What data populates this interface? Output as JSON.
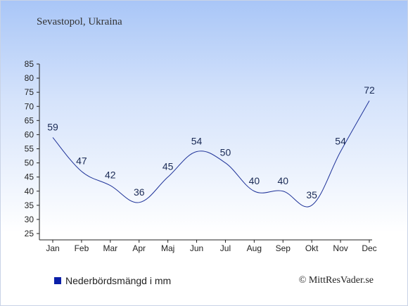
{
  "subtitle": "Sevastopol, Ukraina",
  "legend_label": "Nederbördsmängd i mm",
  "credit": "© MittResVader.se",
  "colors": {
    "line": "#1f3399",
    "legend_swatch": "#0b1fa8",
    "axis": "#222222"
  },
  "chart_data": {
    "type": "line",
    "title": "",
    "xlabel": "",
    "ylabel": "",
    "categories": [
      "Jan",
      "Feb",
      "Mar",
      "Apr",
      "Maj",
      "Jun",
      "Jul",
      "Aug",
      "Sep",
      "Okt",
      "Nov",
      "Dec"
    ],
    "series": [
      {
        "name": "Nederbördsmängd i mm",
        "values": [
          59,
          47,
          42,
          36,
          45,
          54,
          50,
          40,
          40,
          35,
          54,
          72
        ]
      }
    ],
    "ylim": [
      25,
      85
    ],
    "yticks": [
      25,
      30,
      35,
      40,
      45,
      50,
      55,
      60,
      65,
      70,
      75,
      80,
      85
    ],
    "grid": false,
    "legend": "bottom-left"
  }
}
